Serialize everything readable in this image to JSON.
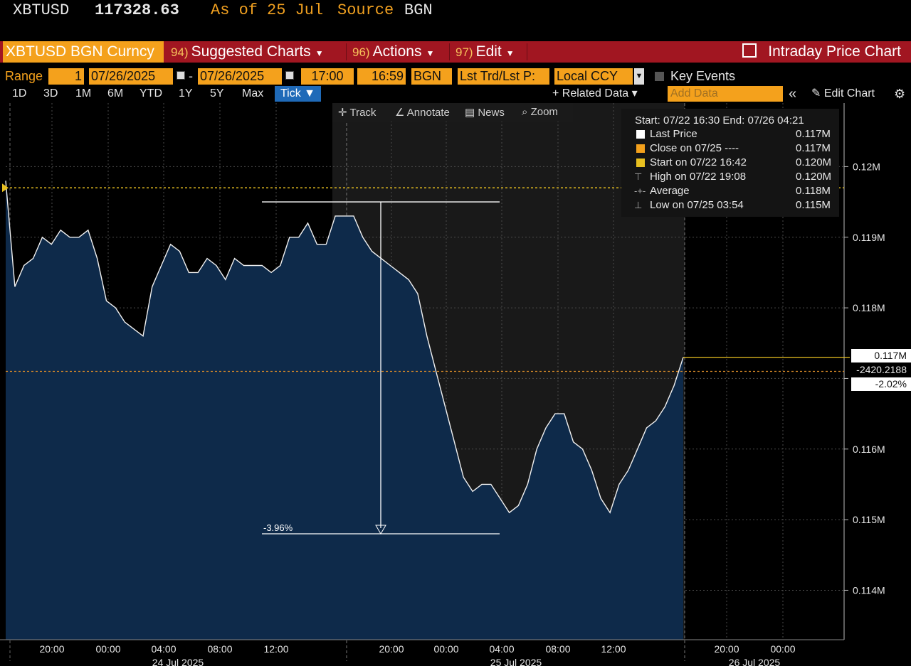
{
  "header": {
    "ticker": "XBTUSD",
    "last_price": "117328.63",
    "as_of_label": "As of",
    "as_of_date": "25 Jul",
    "source_label": "Source",
    "source": "BGN"
  },
  "menubar": {
    "security": "XBTUSD BGN Curncy",
    "suggested_num": "94)",
    "suggested_label": "Suggested Charts",
    "actions_num": "96)",
    "actions_label": "Actions",
    "edit_num": "97)",
    "edit_label": "Edit",
    "title": "Intraday Price Chart"
  },
  "rangebar": {
    "range_label": "Range",
    "range_value": "1",
    "start_date": "07/26/2025",
    "dash": "-",
    "end_date": "07/26/2025",
    "start_time": "17:00",
    "end_time": "16:59",
    "source": "BGN",
    "field": "Lst Trd/Lst P:",
    "currency": "Local CCY",
    "key_events": "Key Events"
  },
  "periodbar": {
    "periods": [
      "1D",
      "3D",
      "1M",
      "6M",
      "YTD",
      "1Y",
      "5Y",
      "Max"
    ],
    "selected": "Tick ▼",
    "related": "+ Related Data ▾",
    "add_data_placeholder": "Add Data",
    "collapse": "«",
    "edit_chart": "✎ Edit Chart",
    "settings": "⚙"
  },
  "toolbar": {
    "track": "✛ Track",
    "annotate": "∠ Annotate",
    "news": "▤ News",
    "zoom": "⌕ Zoom"
  },
  "legend": {
    "header": "Start: 07/22 16:30 End: 07/26 04:21",
    "rows": [
      {
        "label": "Last Price",
        "value": "0.117M",
        "color": "#ffffff"
      },
      {
        "label": "Close on 07/25 ----",
        "value": "0.117M",
        "color": "#f4a11c"
      },
      {
        "label": "Start on 07/22 16:42",
        "value": "0.120M",
        "color": "#e8c020"
      },
      {
        "label": "High on 07/22 19:08",
        "value": "0.120M",
        "symbol": "⊤"
      },
      {
        "label": "Average",
        "value": "0.118M",
        "symbol": "-+-"
      },
      {
        "label": "Low on 07/25 03:54",
        "value": "0.115M",
        "symbol": "⊥"
      }
    ]
  },
  "tags": {
    "price": "0.117M",
    "change": "-2420.2188",
    "change_pct": "-2.02%"
  },
  "chart_data": {
    "type": "area",
    "y_unit": "M",
    "y_ticks": [
      0.114,
      0.115,
      0.116,
      0.117,
      0.118,
      0.119,
      0.12
    ],
    "y_tick_labels": [
      "0.114M",
      "0.115M",
      "0.116M",
      "0.118M",
      "0.119M",
      "0.12M"
    ],
    "ylim": [
      0.1133,
      0.1209
    ],
    "x_tick_labels": [
      "20:00",
      "00:00",
      "04:00",
      "08:00",
      "12:00",
      "20:00",
      "00:00",
      "04:00",
      "08:00",
      "12:00",
      "20:00",
      "00:00"
    ],
    "date_labels": [
      "24 Jul 2025",
      "25 Jul 2025",
      "26 Jul 2025"
    ],
    "last_price": 0.1173,
    "reference_line": 0.1197,
    "close_line": 0.1171,
    "measure": {
      "from": 0.1195,
      "to": 0.1148,
      "label": "-3.96%"
    },
    "series": [
      {
        "name": "Last Price",
        "values": [
          0.1198,
          0.1183,
          0.1186,
          0.1187,
          0.119,
          0.1189,
          0.1191,
          0.119,
          0.119,
          0.1191,
          0.1187,
          0.1181,
          0.118,
          0.1178,
          0.1177,
          0.1176,
          0.1183,
          0.1186,
          0.1189,
          0.1188,
          0.1185,
          0.1185,
          0.1187,
          0.1186,
          0.1184,
          0.1187,
          0.1186,
          0.1186,
          0.1186,
          0.1185,
          0.1186,
          0.119,
          0.119,
          0.1192,
          0.1189,
          0.1189,
          0.1193,
          0.1193,
          0.1193,
          0.119,
          0.1188,
          0.1187,
          0.1186,
          0.1185,
          0.1184,
          0.1182,
          0.1176,
          0.1171,
          0.1166,
          0.1161,
          0.1156,
          0.1154,
          0.1155,
          0.1155,
          0.1153,
          0.1151,
          0.1152,
          0.1155,
          0.116,
          0.1163,
          0.1165,
          0.1165,
          0.1161,
          0.116,
          0.1157,
          0.1153,
          0.1151,
          0.1155,
          0.1157,
          0.116,
          0.1163,
          0.1164,
          0.1166,
          0.1169,
          0.1173
        ]
      }
    ]
  }
}
